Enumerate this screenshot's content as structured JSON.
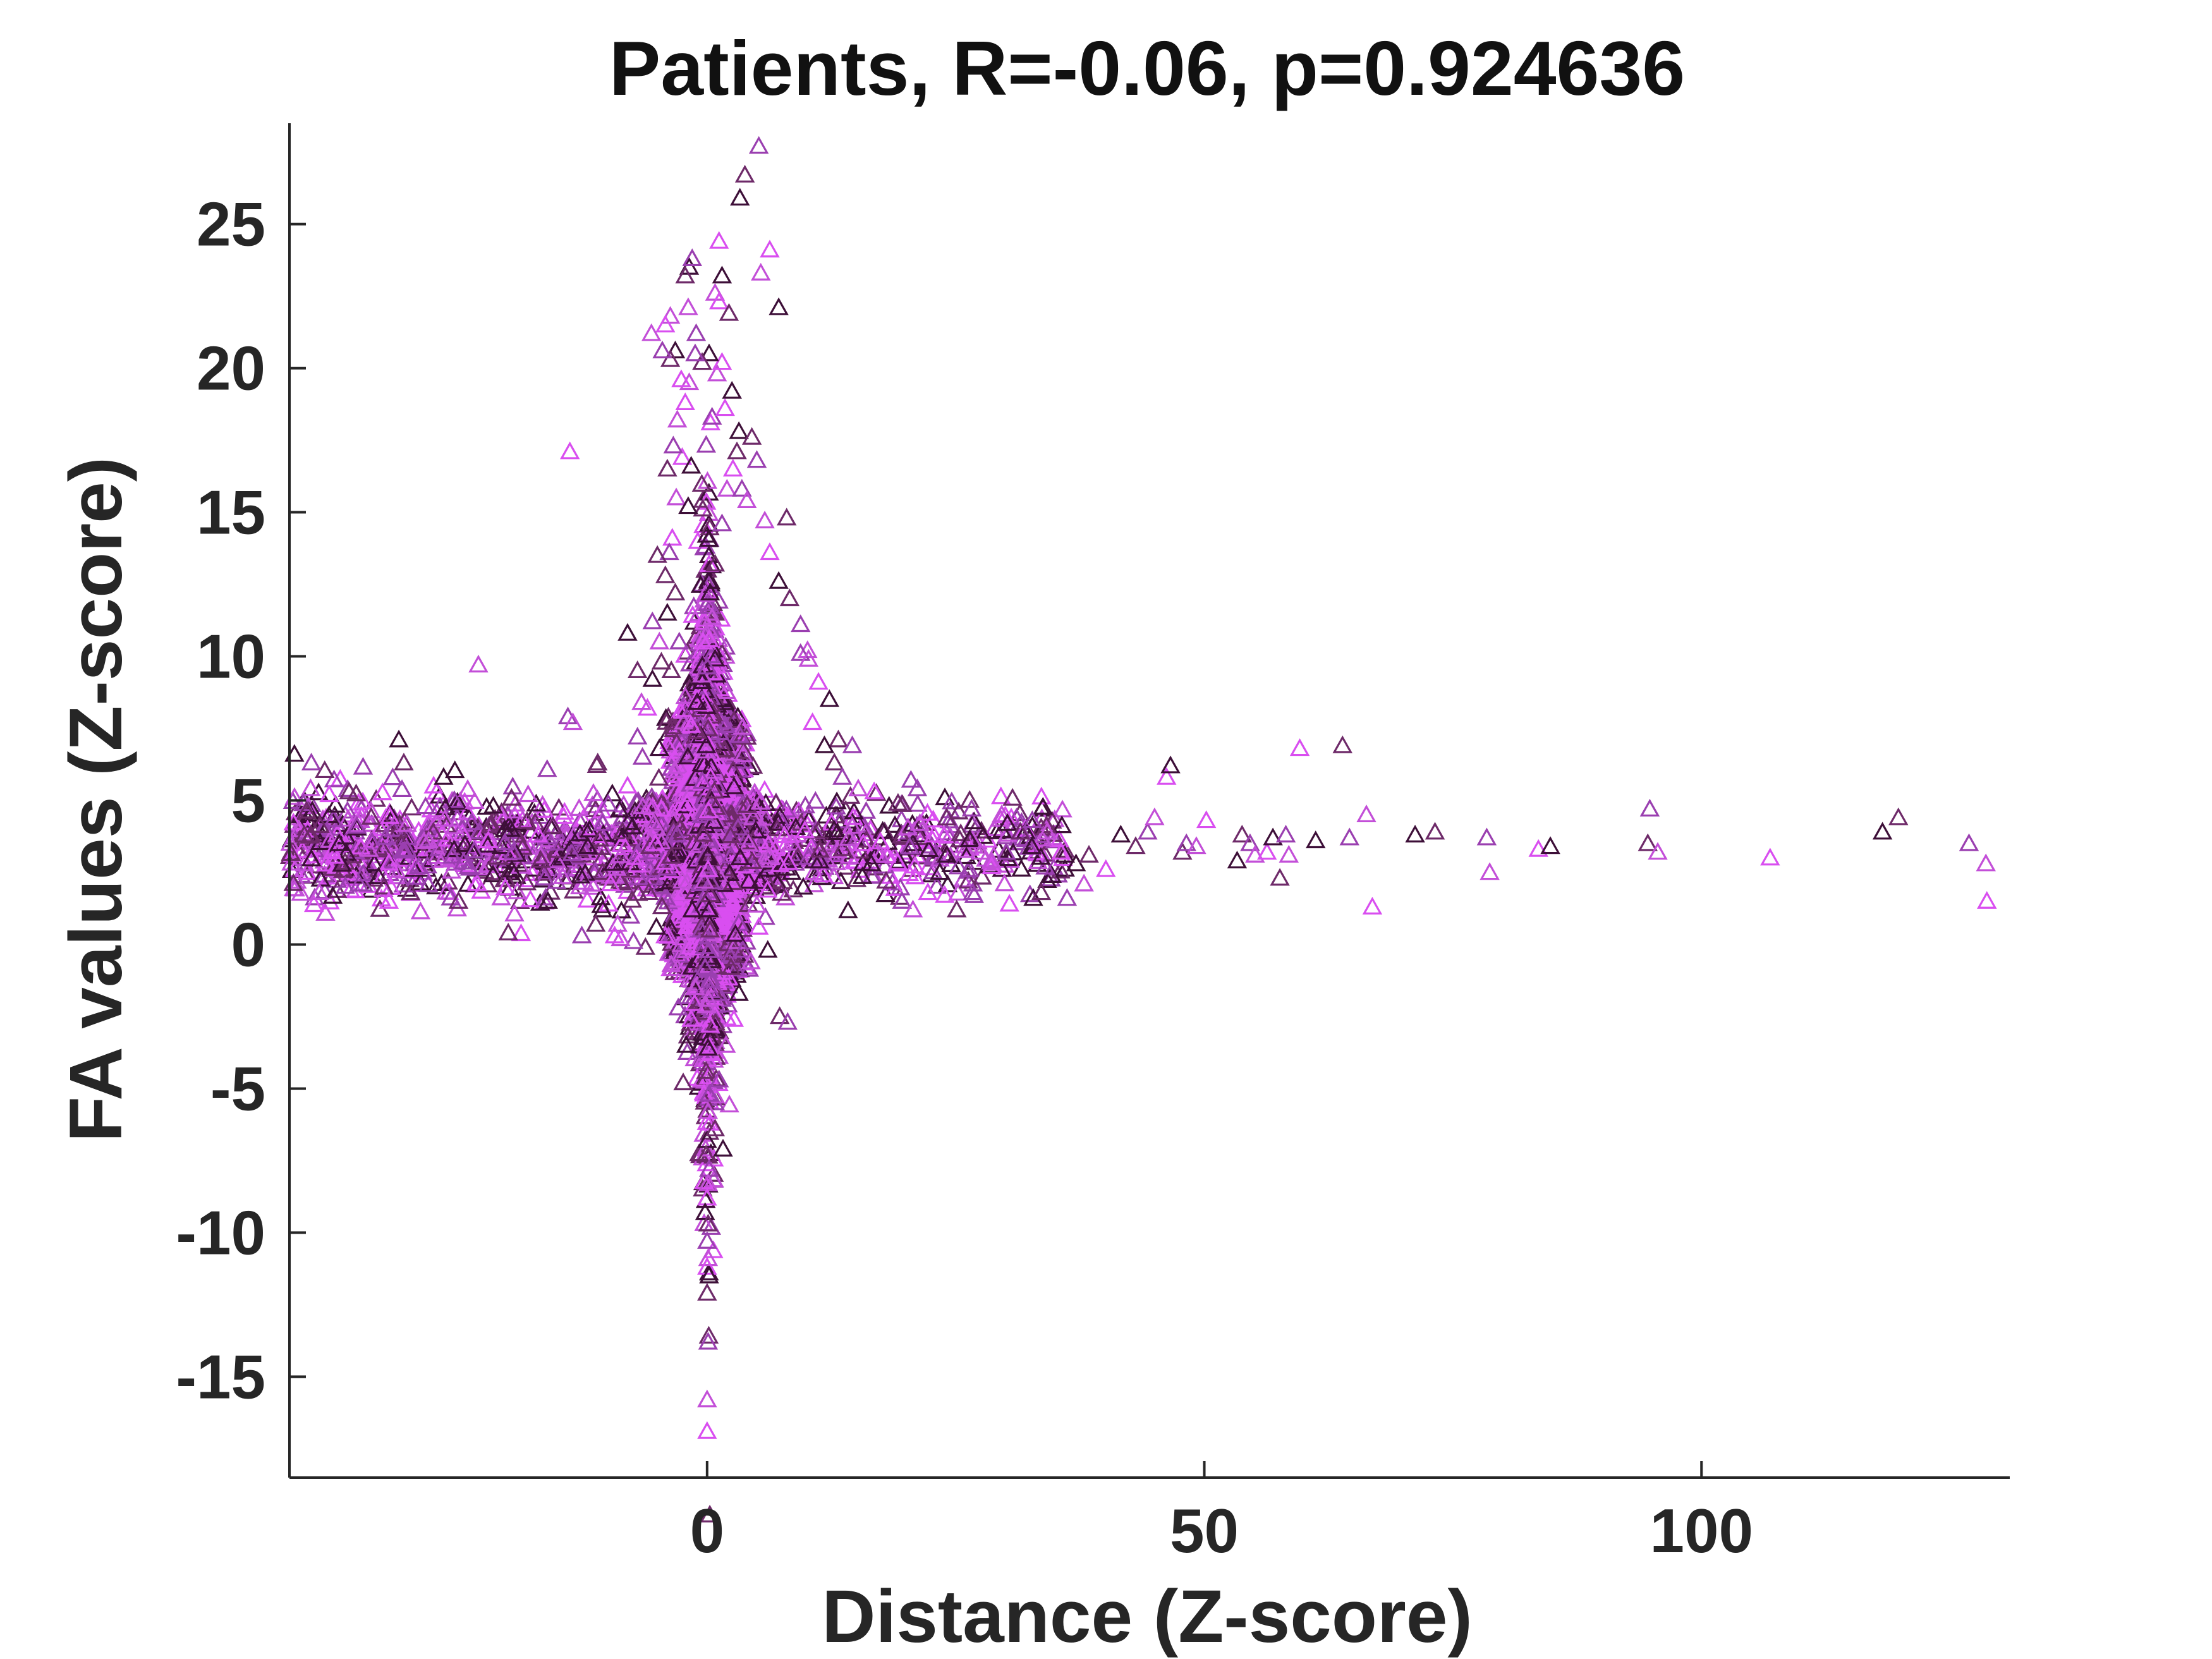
{
  "chart_data": {
    "type": "scatter",
    "title": "Patients, R=-0.06, p=0.924636",
    "xlabel": "Distance (Z-score)",
    "ylabel": "FA values (Z-score)",
    "xlim": [
      -42,
      131
    ],
    "ylim": [
      -18.5,
      28.5
    ],
    "xticks": [
      0,
      50,
      100
    ],
    "yticks": [
      -15,
      -10,
      -5,
      0,
      5,
      10,
      15,
      20,
      25
    ],
    "marker": "triangle-open",
    "grid": false,
    "colors": [
      "#3d0f38",
      "#6e2a69",
      "#9a3fb0",
      "#c34fd8",
      "#d94ef0"
    ],
    "points": [
      [
        -41.5,
        6.6
      ],
      [
        -40.5,
        3.8
      ],
      [
        -39.8,
        6.3
      ],
      [
        -39,
        1.8
      ],
      [
        -38,
        5.2
      ],
      [
        -37,
        3.5
      ],
      [
        -36,
        5.3
      ],
      [
        -35,
        2.1
      ],
      [
        -34,
        3.3
      ],
      [
        -32,
        1.5
      ],
      [
        -31,
        7.1
      ],
      [
        -30.5,
        6.3
      ],
      [
        -29,
        2.7
      ],
      [
        -28,
        3.6
      ],
      [
        -27.5,
        5.5
      ],
      [
        -26.5,
        5.8
      ],
      [
        -25,
        1.5
      ],
      [
        -24,
        2.7
      ],
      [
        -23,
        9.7
      ],
      [
        -22,
        3.6
      ],
      [
        -21.5,
        4.8
      ],
      [
        -20,
        0.4
      ],
      [
        -19.5,
        3.2
      ],
      [
        -18,
        5.2
      ],
      [
        -17,
        3.8
      ],
      [
        -16,
        1.5
      ],
      [
        -15.5,
        4.1
      ],
      [
        -14,
        7.9
      ],
      [
        -13.5,
        7.7
      ],
      [
        -13.8,
        17.1
      ],
      [
        -12,
        3.4
      ],
      [
        -11,
        6.3
      ],
      [
        -10.5,
        4.2
      ],
      [
        -9,
        0.7
      ],
      [
        -8,
        5.5
      ],
      [
        -8,
        10.8
      ],
      [
        -7,
        9.5
      ],
      [
        -6.5,
        6.5
      ],
      [
        -5.8,
        4.8
      ],
      [
        -5.2,
        3.5
      ],
      [
        -4.8,
        6.8
      ],
      [
        -3.6,
        9.5
      ],
      [
        -3,
        3.8
      ],
      [
        -2.5,
        2.2
      ],
      [
        -2,
        4.9
      ],
      [
        -1.5,
        1.2
      ],
      [
        -1,
        7.4
      ],
      [
        -0.6,
        0.5
      ],
      [
        -0.3,
        2.2
      ],
      [
        -3.5,
        14.1
      ],
      [
        -4,
        11.5
      ],
      [
        -3.2,
        12.2
      ],
      [
        -2.8,
        10.5
      ],
      [
        -2.2,
        8.6
      ],
      [
        -1.6,
        7.6
      ],
      [
        -1,
        8.4
      ],
      [
        -4.2,
        12.8
      ],
      [
        -3.8,
        13.6
      ],
      [
        -3.1,
        15.5
      ],
      [
        -2.5,
        16.9
      ],
      [
        -1.9,
        15.2
      ],
      [
        -4,
        16.5
      ],
      [
        -3.4,
        17.3
      ],
      [
        -3,
        18.2
      ],
      [
        -2.2,
        18.8
      ],
      [
        -1.6,
        16.6
      ],
      [
        -5,
        13.5
      ],
      [
        -5.5,
        11.2
      ],
      [
        -4.8,
        10.5
      ],
      [
        -6,
        8.2
      ],
      [
        -5.5,
        9.2
      ],
      [
        -4.6,
        9.8
      ],
      [
        -7,
        7.2
      ],
      [
        -6.6,
        8.4
      ],
      [
        -0.4,
        10.5
      ],
      [
        0.3,
        12.2
      ],
      [
        0.8,
        13.2
      ],
      [
        1.5,
        14.6
      ],
      [
        2,
        15.8
      ],
      [
        2.6,
        16.5
      ],
      [
        3.2,
        17.8
      ],
      [
        4.5,
        17.6
      ],
      [
        5,
        16.8
      ],
      [
        5.8,
        14.7
      ],
      [
        6.3,
        13.6
      ],
      [
        7.2,
        12.6
      ],
      [
        8.3,
        12
      ],
      [
        9.4,
        11.1
      ],
      [
        10.1,
        10.2
      ],
      [
        11.2,
        9.1
      ],
      [
        12.3,
        8.5
      ],
      [
        13.2,
        7.1
      ],
      [
        14.6,
        6.9
      ],
      [
        15.2,
        5.4
      ],
      [
        16.8,
        5.3
      ],
      [
        18.3,
        4.8
      ],
      [
        19.2,
        4.9
      ],
      [
        20.5,
        5.7
      ],
      [
        21.4,
        4.2
      ],
      [
        22.8,
        3.8
      ],
      [
        24.1,
        3.1
      ],
      [
        25.3,
        4.6
      ],
      [
        26.6,
        4.7
      ],
      [
        27.5,
        3.2
      ],
      [
        28.6,
        2.7
      ],
      [
        30.2,
        4.2
      ],
      [
        31.5,
        3.9
      ],
      [
        32.7,
        4.3
      ],
      [
        34.2,
        3.9
      ],
      [
        35.6,
        3.2
      ],
      [
        37.1,
        2.8
      ],
      [
        38.4,
        3.1
      ],
      [
        0.5,
        18.3
      ],
      [
        1,
        19.8
      ],
      [
        1.5,
        20.2
      ],
      [
        0.2,
        20.5
      ],
      [
        -0.5,
        20.2
      ],
      [
        -1.2,
        20.5
      ],
      [
        -1.8,
        19.5
      ],
      [
        1.8,
        18.6
      ],
      [
        2.5,
        19.2
      ],
      [
        3,
        17.1
      ],
      [
        3.5,
        15.8
      ],
      [
        4,
        15.4
      ],
      [
        0.1,
        2.6
      ],
      [
        0.2,
        1.2
      ],
      [
        0.3,
        0.5
      ],
      [
        -0.2,
        -0.8
      ],
      [
        0.1,
        -1.9
      ],
      [
        0.3,
        -2.8
      ],
      [
        0.1,
        -3.6
      ],
      [
        -0.1,
        -4.4
      ],
      [
        0.2,
        -5.2
      ],
      [
        0.1,
        -5.8
      ],
      [
        0.3,
        -6.2
      ],
      [
        0,
        -6.8
      ],
      [
        -0.1,
        -7.3
      ],
      [
        0.2,
        -7.8
      ],
      [
        0.1,
        -8.3
      ],
      [
        0,
        -8.8
      ],
      [
        -0.2,
        -9.3
      ],
      [
        0.1,
        -9.7
      ],
      [
        0,
        -10.3
      ],
      [
        0.1,
        -10.9
      ],
      [
        0,
        -11.2
      ],
      [
        0.2,
        -11.5
      ],
      [
        0,
        -12.1
      ],
      [
        0.1,
        -13.8
      ],
      [
        0,
        -15.8
      ],
      [
        0,
        -16.9
      ],
      [
        1.6,
        -7.1
      ],
      [
        0.8,
        -6.4
      ],
      [
        1.2,
        -4.7
      ],
      [
        1.9,
        -3.5
      ],
      [
        2.7,
        -2.6
      ],
      [
        3.2,
        -1.7
      ],
      [
        2.4,
        -0.8
      ],
      [
        3.6,
        -0.2
      ],
      [
        4.4,
        -0.6
      ],
      [
        5.2,
        0.6
      ],
      [
        6.1,
        -0.2
      ],
      [
        7.3,
        -2.5
      ],
      [
        8.1,
        -2.7
      ],
      [
        -1.2,
        -1.5
      ],
      [
        -1.6,
        -2.6
      ],
      [
        -2.1,
        -3.5
      ],
      [
        -2.4,
        -4.8
      ],
      [
        -2.9,
        -2.2
      ],
      [
        -3.6,
        -0.7
      ],
      [
        -4.2,
        0.3
      ],
      [
        -5.1,
        0.6
      ],
      [
        -6.2,
        -0.1
      ],
      [
        -7.4,
        0.1
      ],
      [
        -8.7,
        0.2
      ],
      [
        -9.3,
        0.3
      ],
      [
        -10.5,
        1.2
      ],
      [
        -11.2,
        0.7
      ],
      [
        -12.6,
        0.3
      ],
      [
        0.8,
        22.6
      ],
      [
        1.2,
        22.3
      ],
      [
        -1.8,
        23.5
      ],
      [
        -2.2,
        23.2
      ],
      [
        -1.5,
        23.8
      ],
      [
        -1.9,
        22.1
      ],
      [
        1.2,
        24.4
      ],
      [
        1.5,
        23.2
      ],
      [
        2.2,
        21.9
      ],
      [
        -1.1,
        21.2
      ],
      [
        -3.7,
        21.8
      ],
      [
        -4.2,
        21.5
      ],
      [
        -3.2,
        20.6
      ],
      [
        -3.7,
        20.3
      ],
      [
        -4.5,
        20.6
      ],
      [
        -5.6,
        21.2
      ],
      [
        -2.6,
        19.6
      ],
      [
        3.3,
        25.9
      ],
      [
        3.8,
        26.7
      ],
      [
        5.2,
        27.7
      ],
      [
        5.4,
        23.3
      ],
      [
        6.3,
        24.1
      ],
      [
        7.2,
        22.1
      ],
      [
        8,
        14.8
      ],
      [
        9.4,
        10.1
      ],
      [
        10.2,
        9.9
      ],
      [
        10.6,
        7.7
      ],
      [
        11.8,
        6.9
      ],
      [
        12.8,
        6.3
      ],
      [
        13.6,
        5.8
      ],
      [
        14.6,
        4.1
      ],
      [
        15.7,
        3.5
      ],
      [
        16.5,
        2.8
      ],
      [
        18,
        2.2
      ],
      [
        19.6,
        1.5
      ],
      [
        20.7,
        1.2
      ],
      [
        22.2,
        1.8
      ],
      [
        23.4,
        2.5
      ],
      [
        25.1,
        1.2
      ],
      [
        26.7,
        1.8
      ],
      [
        28.6,
        2.9
      ],
      [
        30.4,
        1.4
      ],
      [
        32.8,
        1.6
      ],
      [
        33.6,
        1.8
      ],
      [
        36.2,
        1.6
      ],
      [
        37.9,
        2.1
      ],
      [
        40.1,
        2.6
      ],
      [
        41.6,
        3.8
      ],
      [
        43.1,
        3.4
      ],
      [
        44.3,
        3.9
      ],
      [
        45,
        4.4
      ],
      [
        46.2,
        5.8
      ],
      [
        46.6,
        6.2
      ],
      [
        47.8,
        3.2
      ],
      [
        48.2,
        3.5
      ],
      [
        49.2,
        3.4
      ],
      [
        50.2,
        4.3
      ],
      [
        53.3,
        2.9
      ],
      [
        53.8,
        3.8
      ],
      [
        54.6,
        3.5
      ],
      [
        55.1,
        3.1
      ],
      [
        56.3,
        3.2
      ],
      [
        56.9,
        3.7
      ],
      [
        57.6,
        2.3
      ],
      [
        58.2,
        3.8
      ],
      [
        58.5,
        3.1
      ],
      [
        59.6,
        6.8
      ],
      [
        61.2,
        3.6
      ],
      [
        63.9,
        6.9
      ],
      [
        64.6,
        3.7
      ],
      [
        66.3,
        4.5
      ],
      [
        66.9,
        1.3
      ],
      [
        71.2,
        3.8
      ],
      [
        73.2,
        3.9
      ],
      [
        78.4,
        3.7
      ],
      [
        78.7,
        2.5
      ],
      [
        83.6,
        3.3
      ],
      [
        84.8,
        3.4
      ],
      [
        94.6,
        3.5
      ],
      [
        94.8,
        4.7
      ],
      [
        95.6,
        3.2
      ],
      [
        106.9,
        3
      ],
      [
        118.2,
        3.9
      ],
      [
        119.8,
        4.4
      ],
      [
        126.9,
        3.5
      ],
      [
        128.6,
        2.8
      ],
      [
        128.7,
        1.5
      ]
    ],
    "cloud": {
      "n": 5000,
      "center": [
        0,
        3.5
      ],
      "spread_x": 5.5,
      "spread_y": 3.2
    }
  }
}
